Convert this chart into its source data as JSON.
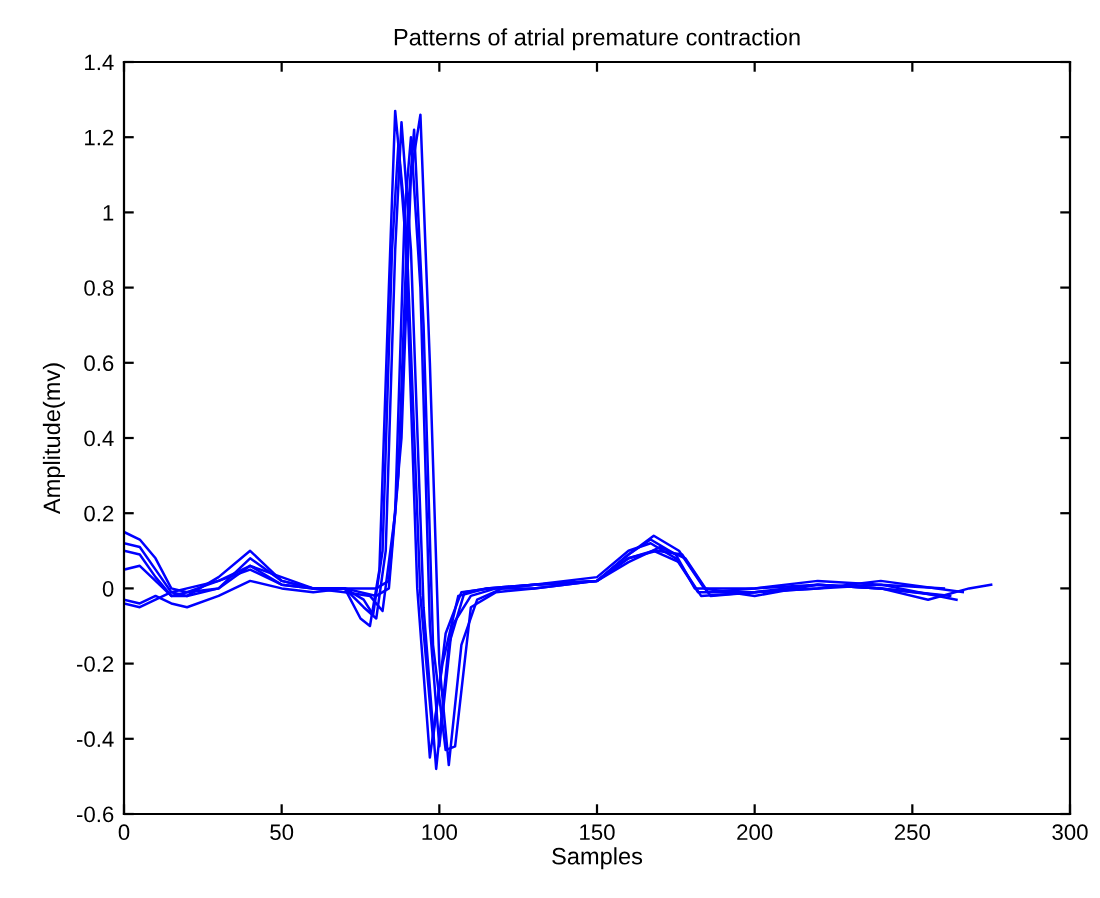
{
  "chart_data": {
    "type": "line",
    "title": "Patterns of atrial premature contraction",
    "xlabel": "Samples",
    "ylabel": "Amplitude(mv)",
    "xlim": [
      0,
      300
    ],
    "xticks": [
      0,
      50,
      100,
      150,
      200,
      250,
      300
    ],
    "ylim": [
      -0.6,
      1.4
    ],
    "yticks": [
      -0.6,
      -0.4,
      -0.2,
      0,
      0.2,
      0.4,
      0.6,
      0.8,
      1,
      1.2,
      1.4
    ],
    "grid": false,
    "legend": false,
    "series": [
      {
        "color": "#0000ff",
        "x": [
          0,
          5,
          10,
          15,
          20,
          30,
          40,
          50,
          60,
          70,
          75,
          78,
          81,
          84,
          86,
          89,
          93,
          97,
          101,
          106,
          115,
          130,
          150,
          160,
          167,
          175,
          182,
          200,
          220,
          240,
          260
        ],
        "values": [
          0.15,
          0.13,
          0.08,
          0.0,
          -0.01,
          0.0,
          0.08,
          0.02,
          0.0,
          0.0,
          -0.08,
          -0.1,
          0.05,
          0.8,
          1.27,
          1.0,
          0.0,
          -0.45,
          -0.2,
          -0.02,
          0.0,
          0.01,
          0.03,
          0.1,
          0.12,
          0.08,
          -0.01,
          -0.01,
          0.0,
          0.01,
          0.0
        ]
      },
      {
        "color": "#0000ff",
        "x": [
          0,
          5,
          10,
          15,
          20,
          30,
          40,
          50,
          60,
          70,
          76,
          80,
          83,
          86,
          88,
          91,
          95,
          99,
          103,
          108,
          115,
          130,
          150,
          160,
          168,
          176,
          184,
          200,
          220,
          240,
          262
        ],
        "values": [
          0.12,
          0.11,
          0.05,
          -0.01,
          -0.02,
          0.03,
          0.1,
          0.02,
          0.0,
          0.0,
          -0.05,
          -0.08,
          0.1,
          0.9,
          1.24,
          0.9,
          -0.05,
          -0.48,
          -0.15,
          -0.01,
          0.0,
          0.01,
          0.02,
          0.09,
          0.14,
          0.1,
          0.0,
          -0.02,
          0.01,
          0.0,
          -0.02
        ]
      },
      {
        "color": "#0000ff",
        "x": [
          0,
          5,
          10,
          15,
          20,
          30,
          40,
          50,
          60,
          70,
          78,
          82,
          86,
          89,
          91,
          94,
          97,
          100,
          104,
          110,
          118,
          130,
          150,
          160,
          169,
          177,
          185,
          200,
          220,
          240,
          264
        ],
        "values": [
          0.1,
          0.09,
          0.03,
          -0.02,
          -0.02,
          0.0,
          0.06,
          0.03,
          0.0,
          -0.01,
          -0.02,
          -0.06,
          0.2,
          1.0,
          1.2,
          0.8,
          -0.1,
          -0.42,
          -0.1,
          -0.02,
          0.0,
          0.01,
          0.02,
          0.08,
          0.1,
          0.09,
          -0.01,
          0.0,
          0.02,
          0.01,
          -0.03
        ]
      },
      {
        "color": "#0000ff",
        "x": [
          0,
          5,
          10,
          15,
          20,
          30,
          40,
          50,
          60,
          70,
          80,
          84,
          88,
          91,
          94,
          97,
          100,
          103,
          107,
          112,
          120,
          130,
          150,
          160,
          170,
          178,
          186,
          200,
          220,
          240,
          266
        ],
        "values": [
          0.05,
          0.06,
          0.02,
          -0.02,
          -0.01,
          0.02,
          0.05,
          0.01,
          0.0,
          0.0,
          0.0,
          0.02,
          0.4,
          1.1,
          1.26,
          0.6,
          -0.2,
          -0.47,
          -0.15,
          -0.03,
          0.0,
          0.01,
          0.02,
          0.07,
          0.11,
          0.08,
          -0.02,
          -0.01,
          0.0,
          0.02,
          -0.01
        ]
      },
      {
        "color": "#0000ff",
        "x": [
          0,
          5,
          10,
          15,
          20,
          30,
          40,
          50,
          60,
          70,
          80,
          84,
          87,
          90,
          92,
          95,
          98,
          102,
          105,
          110,
          118,
          130,
          150,
          160,
          168,
          176,
          183,
          200,
          220,
          240,
          260
        ],
        "values": [
          -0.03,
          -0.04,
          -0.02,
          -0.04,
          -0.05,
          -0.02,
          0.02,
          0.0,
          -0.01,
          0.0,
          -0.02,
          0.0,
          0.3,
          1.0,
          1.22,
          0.7,
          -0.15,
          -0.43,
          -0.42,
          -0.05,
          -0.01,
          0.0,
          0.02,
          0.08,
          0.1,
          0.07,
          -0.02,
          -0.01,
          0.01,
          0.0,
          -0.02
        ]
      },
      {
        "color": "#0000ff",
        "x": [
          0,
          5,
          10,
          15,
          20,
          30,
          40,
          50,
          60,
          70,
          76,
          79,
          82,
          85,
          87,
          90,
          94,
          98,
          102,
          107,
          116,
          130,
          150,
          160,
          167,
          175,
          181,
          200,
          220,
          240,
          255,
          268,
          275
        ],
        "values": [
          -0.04,
          -0.05,
          -0.03,
          -0.01,
          0.0,
          0.02,
          0.06,
          0.01,
          0.0,
          0.0,
          -0.03,
          -0.07,
          0.1,
          0.9,
          1.18,
          0.85,
          -0.02,
          -0.4,
          -0.12,
          -0.01,
          0.0,
          0.0,
          0.02,
          0.09,
          0.13,
          0.09,
          0.0,
          0.0,
          0.01,
          0.0,
          -0.03,
          0.0,
          0.01
        ]
      }
    ]
  }
}
